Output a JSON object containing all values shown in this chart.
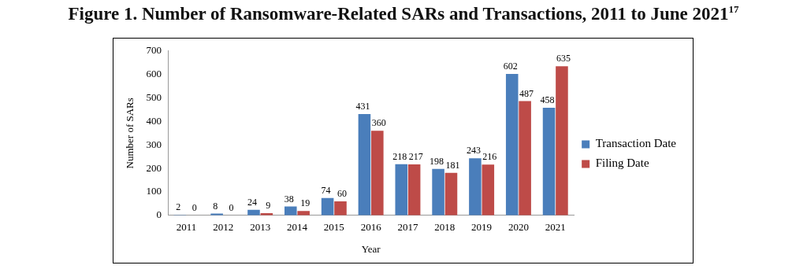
{
  "chart_data": {
    "type": "bar",
    "title": "Figure 1. Number of Ransomware-Related SARs and Transactions, 2011 to June 2021$^{17}$",
    "xlabel": "Year",
    "ylabel": "Number of SARs",
    "categories": [
      "2011",
      "2012",
      "2013",
      "2014",
      "2015",
      "2016",
      "2017",
      "2018",
      "2019",
      "2020",
      "2021"
    ],
    "series": [
      {
        "name": "Transaction Date",
        "color": "#4a7ebb",
        "values": [
          2,
          8,
          24,
          38,
          74,
          431,
          218,
          198,
          243,
          602,
          458
        ]
      },
      {
        "name": "Filing Date",
        "color": "#be4b48",
        "values": [
          0,
          0,
          9,
          19,
          60,
          360,
          217,
          181,
          216,
          487,
          635
        ]
      }
    ],
    "ylim": [
      0,
      700
    ],
    "yticks": [
      0,
      100,
      200,
      300,
      400,
      500,
      600,
      700
    ],
    "grid": false,
    "legend": "right",
    "data_labels": true
  }
}
